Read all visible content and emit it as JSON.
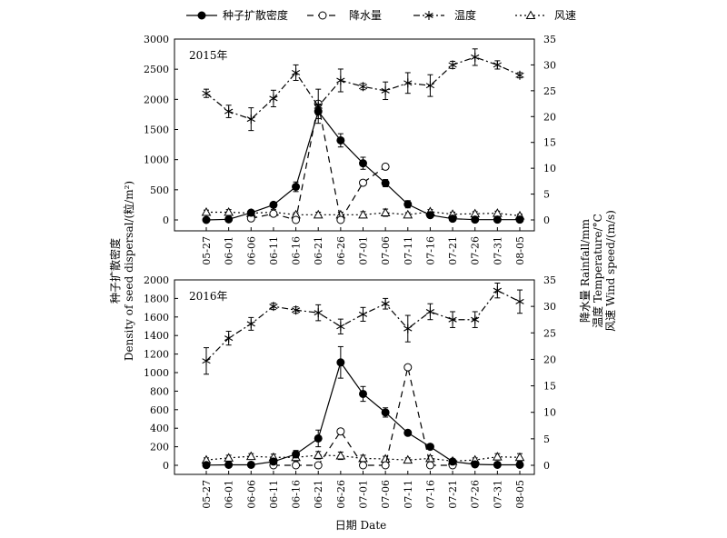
{
  "legend": {
    "items": [
      {
        "key": "density",
        "label": "种子扩散密度",
        "marker": "filled-circle",
        "dash": "solid"
      },
      {
        "key": "rainfall",
        "label": "降水量",
        "marker": "open-circle",
        "dash": "dashed"
      },
      {
        "key": "temperature",
        "label": "温度",
        "marker": "asterisk",
        "dash": "dash-dot"
      },
      {
        "key": "wind",
        "label": "风速",
        "marker": "open-triangle",
        "dash": "dotted"
      }
    ]
  },
  "axes": {
    "xlabel": "日期 Date",
    "ylabel_left_cn": "种子扩散密度",
    "ylabel_left_en": "Density of seed dispersal/(粒/m²)",
    "ylabel_right_1": "降水量 Rainfall/mm",
    "ylabel_right_2": "温度 Temperature/°C",
    "ylabel_right_3": "风速 Wind speed/(m/s)"
  },
  "chart_data": [
    {
      "type": "line",
      "panel_label": "2015年",
      "categories": [
        "05-27",
        "06-01",
        "06-06",
        "06-11",
        "06-16",
        "06-21",
        "06-26",
        "07-01",
        "07-06",
        "07-11",
        "07-16",
        "07-21",
        "07-26",
        "07-31",
        "08-05"
      ],
      "ylim_left": [
        0,
        3000
      ],
      "yticks_left": [
        0,
        500,
        1000,
        1500,
        2000,
        2500,
        3000
      ],
      "ylim_right": [
        0,
        35
      ],
      "yticks_right": [
        0,
        5,
        10,
        15,
        20,
        25,
        30,
        35
      ],
      "series": [
        {
          "key": "density",
          "name": "种子扩散密度",
          "axis": "left",
          "values": [
            0,
            10,
            120,
            250,
            550,
            1800,
            1320,
            940,
            610,
            260,
            80,
            20,
            5,
            5,
            5
          ],
          "errors": [
            0,
            20,
            40,
            40,
            80,
            120,
            110,
            100,
            60,
            60,
            20,
            10,
            5,
            5,
            5
          ]
        },
        {
          "key": "rainfall",
          "name": "降水量",
          "axis": "right",
          "values": [
            null,
            null,
            0.3,
            1.2,
            0,
            22.5,
            0,
            7.2,
            10.3,
            null,
            null,
            null,
            null,
            null,
            null
          ],
          "errors": null
        },
        {
          "key": "temperature",
          "name": "温度",
          "axis": "right",
          "values": [
            24.5,
            21,
            19.5,
            23.5,
            28.5,
            22,
            27,
            25.8,
            25,
            26.5,
            26,
            30,
            31.5,
            30,
            28
          ],
          "errors": [
            0.8,
            1.2,
            2.2,
            1.6,
            1.5,
            3.3,
            2.2,
            0.6,
            1.7,
            2,
            2.1,
            0.7,
            1.6,
            0.8,
            0.5
          ]
        },
        {
          "key": "wind",
          "name": "风速",
          "axis": "right",
          "values": [
            1.5,
            1.5,
            1.3,
            1.5,
            1,
            1,
            1,
            1,
            1.4,
            1,
            1.6,
            1.1,
            1.2,
            1.3,
            0.8
          ],
          "errors": [
            0.4,
            0.5,
            0.5,
            0.5,
            0.4,
            0.5,
            0.5,
            0.6,
            0.7,
            0.4,
            0.4,
            0.4,
            0.4,
            0.4,
            0.3
          ]
        }
      ]
    },
    {
      "type": "line",
      "panel_label": "2016年",
      "categories": [
        "05-27",
        "06-01",
        "06-06",
        "06-11",
        "06-16",
        "06-21",
        "06-26",
        "07-01",
        "07-06",
        "07-11",
        "07-16",
        "07-21",
        "07-26",
        "07-31",
        "08-05"
      ],
      "ylim_left": [
        0,
        2000
      ],
      "yticks_left": [
        0,
        200,
        400,
        600,
        800,
        1000,
        1200,
        1400,
        1600,
        1800,
        2000
      ],
      "ylim_right": [
        0,
        35
      ],
      "yticks_right": [
        0,
        5,
        10,
        15,
        20,
        25,
        30,
        35
      ],
      "series": [
        {
          "key": "density",
          "name": "种子扩散密度",
          "axis": "left",
          "values": [
            2,
            5,
            5,
            40,
            120,
            290,
            1110,
            770,
            570,
            350,
            200,
            40,
            10,
            5,
            5
          ],
          "errors": [
            0,
            0,
            0,
            20,
            40,
            90,
            170,
            80,
            50,
            20,
            20,
            20,
            5,
            5,
            5
          ]
        },
        {
          "key": "rainfall",
          "name": "降水量",
          "axis": "right",
          "values": [
            null,
            null,
            null,
            0,
            0,
            0,
            6.4,
            0,
            0,
            18.5,
            0,
            0,
            null,
            null,
            null
          ],
          "errors": null
        },
        {
          "key": "temperature",
          "name": "温度",
          "axis": "right",
          "values": [
            19.7,
            24,
            26.7,
            30,
            29.3,
            28.8,
            26.2,
            28.5,
            30.5,
            25.8,
            29,
            27.5,
            27.5,
            33,
            30.9
          ],
          "errors": [
            2.5,
            1.3,
            1.2,
            0.6,
            0.6,
            1.5,
            1.4,
            1.3,
            1,
            2.5,
            1.5,
            1.5,
            1.5,
            1.4,
            2.2
          ]
        },
        {
          "key": "wind",
          "name": "风速",
          "axis": "right",
          "values": [
            1,
            1.4,
            1.7,
            1.5,
            1.5,
            1.9,
            1.8,
            1.3,
            1.2,
            1,
            1.3,
            0.8,
            1,
            1.6,
            1.5
          ],
          "errors": [
            0.4,
            0.5,
            0.5,
            0.6,
            0.7,
            0.7,
            0.7,
            0.6,
            0.5,
            0.4,
            0.5,
            0.4,
            0.4,
            0.6,
            0.7
          ]
        }
      ]
    }
  ]
}
